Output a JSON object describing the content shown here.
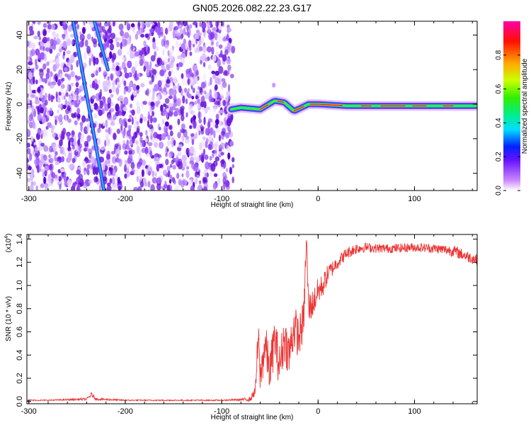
{
  "title": "GN05.2026.082.22.23.G17",
  "chart_data": [
    {
      "type": "heatmap",
      "title": "GN05.2026.082.22.23.G17",
      "xlabel": "Height of straight line (km)",
      "ylabel": "Frequency (Hz)",
      "xlim": [
        -302,
        165
      ],
      "ylim": [
        -50,
        48
      ],
      "xticks": [
        -300,
        -200,
        -100,
        0,
        100
      ],
      "xtick_labels": [
        "-300",
        "-200",
        "-100",
        "0",
        "100"
      ],
      "yticks": [
        -40,
        -20,
        0,
        20,
        40
      ],
      "ytick_labels": [
        "-40",
        "-20",
        "0",
        "20",
        "40"
      ],
      "noise_region_x": [
        -302,
        -88
      ],
      "features": [
        {
          "name": "main-ridge",
          "x": [
            -90,
            -80,
            -60,
            -45,
            -35,
            -25,
            -10,
            0,
            30,
            60,
            100,
            130,
            165
          ],
          "freq": [
            -3,
            -2,
            -3,
            2,
            1,
            -4,
            0,
            0,
            -1,
            -1,
            -1,
            -1,
            -1
          ]
        },
        {
          "name": "diagonal-streak-1",
          "x": [
            -254,
            -222
          ],
          "freq": [
            48,
            -50
          ]
        },
        {
          "name": "diagonal-streak-2",
          "x": [
            -232,
            -218
          ],
          "freq": [
            48,
            20
          ]
        }
      ],
      "colorbar": {
        "label": "Normalized spectral amplitude",
        "range": [
          0,
          1
        ],
        "ticks": [
          0.0,
          0.2,
          0.4,
          0.6,
          0.8
        ],
        "tick_labels": [
          "0.0",
          "0.2",
          "0.4",
          "0.6",
          "0.8"
        ]
      }
    },
    {
      "type": "line",
      "xlabel": "Height of straight line (km)",
      "ylabel": "SNR (10 * v/v)",
      "y_multiplier_label": "(x10",
      "y_multiplier_exp": "4",
      "y_multiplier_close": ")",
      "xlim": [
        -302,
        165
      ],
      "ylim": [
        -0.02,
        1.44
      ],
      "xticks": [
        -300,
        -200,
        -100,
        0,
        100
      ],
      "xtick_labels": [
        "-300",
        "-200",
        "-100",
        "0",
        "100"
      ],
      "yticks": [
        0.0,
        0.2,
        0.4,
        0.6,
        0.8,
        1.0,
        1.2,
        1.4
      ],
      "ytick_labels": [
        "0.0",
        "0.2",
        "0.4",
        "0.6",
        "0.8",
        "1.0",
        "1.2",
        "1.4"
      ],
      "series": [
        {
          "name": "SNR",
          "color": "#ee3333",
          "x": [
            -302,
            -280,
            -260,
            -240,
            -235,
            -230,
            -200,
            -150,
            -100,
            -80,
            -70,
            -65,
            -62,
            -60,
            -55,
            -50,
            -45,
            -40,
            -35,
            -30,
            -25,
            -20,
            -15,
            -12,
            -10,
            -5,
            0,
            5,
            10,
            20,
            30,
            40,
            50,
            60,
            80,
            100,
            120,
            140,
            155,
            165
          ],
          "y": [
            0.01,
            0.01,
            0.015,
            0.02,
            0.06,
            0.02,
            0.01,
            0.01,
            0.01,
            0.015,
            0.02,
            0.1,
            0.55,
            0.2,
            0.5,
            0.25,
            0.55,
            0.3,
            0.55,
            0.4,
            0.65,
            0.55,
            0.7,
            1.42,
            0.8,
            0.85,
            0.95,
            1.0,
            1.1,
            1.2,
            1.28,
            1.32,
            1.33,
            1.32,
            1.32,
            1.33,
            1.32,
            1.3,
            1.25,
            1.22
          ],
          "noise": [
            0.005,
            0.005,
            0.008,
            0.01,
            0.02,
            0.01,
            0.005,
            0.005,
            0.005,
            0.01,
            0.02,
            0.05,
            0.2,
            0.15,
            0.2,
            0.18,
            0.2,
            0.2,
            0.2,
            0.2,
            0.2,
            0.18,
            0.18,
            0.1,
            0.15,
            0.12,
            0.12,
            0.1,
            0.08,
            0.06,
            0.05,
            0.05,
            0.04,
            0.04,
            0.04,
            0.04,
            0.04,
            0.05,
            0.05,
            0.05
          ]
        }
      ]
    }
  ]
}
